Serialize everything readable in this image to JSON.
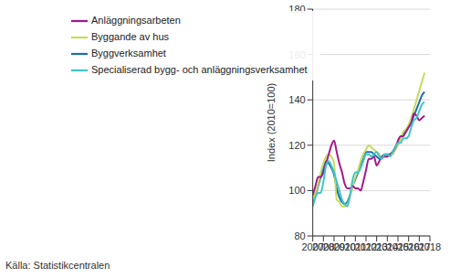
{
  "chart_data": {
    "type": "line",
    "y_label": "Index (2010=100)",
    "source": "Källa: Statistikcentralen",
    "x": [
      2007,
      2007.25,
      2007.5,
      2007.75,
      2008,
      2008.25,
      2008.5,
      2008.75,
      2009,
      2009.25,
      2009.5,
      2009.75,
      2010,
      2010.25,
      2010.5,
      2010.75,
      2011,
      2011.25,
      2011.5,
      2011.75,
      2012,
      2012.25,
      2012.5,
      2012.75,
      2013,
      2013.25,
      2013.5,
      2013.75,
      2014,
      2014.25,
      2014.5,
      2014.75,
      2015,
      2015.25,
      2015.5,
      2015.75,
      2016,
      2016.25,
      2016.5,
      2016.75,
      2017,
      2017.25,
      2017.5
    ],
    "series": [
      {
        "name": "Byggverksamhet",
        "color": "#1f6db3",
        "values": [
          94,
          98,
          102,
          106,
          110,
          113,
          112,
          110,
          107,
          101,
          97,
          95,
          94,
          95,
          98,
          102,
          105,
          108,
          111,
          114,
          117,
          117,
          117,
          116,
          115,
          114,
          115,
          116,
          116,
          116,
          117,
          119,
          121,
          123,
          125,
          126,
          128,
          130,
          133,
          136,
          139,
          142,
          143.5
        ]
      },
      {
        "name": "Byggande av hus",
        "color": "#c5dc5b",
        "values": [
          96,
          99,
          103,
          108,
          112,
          115,
          116,
          115,
          112,
          96,
          95,
          93,
          93,
          94,
          97,
          102,
          106,
          109,
          113,
          116,
          118,
          120,
          119,
          118,
          117,
          116,
          114,
          115,
          115,
          116,
          116,
          118,
          120,
          123,
          126,
          127,
          129,
          132,
          136,
          140,
          144,
          148,
          152
        ]
      },
      {
        "name": "Anläggningsarbeten",
        "color": "#a3198a",
        "values": [
          98,
          102,
          106,
          106,
          108,
          112,
          116,
          120,
          122,
          117,
          112,
          108,
          103,
          101,
          101,
          102,
          101,
          101,
          100,
          104,
          109,
          114,
          114,
          115,
          111,
          113,
          115,
          115,
          115,
          116,
          117,
          119,
          122,
          124,
          124,
          126,
          128,
          130,
          134,
          133,
          131,
          132,
          133
        ]
      },
      {
        "name": "Specialiserad bygg- och anläggningsverksamhet",
        "color": "#3fc6c8",
        "values": [
          93,
          97,
          99,
          99,
          104,
          111,
          113,
          111,
          108,
          104,
          100,
          96,
          94,
          93,
          98,
          105,
          108,
          108,
          110,
          113,
          116,
          116,
          115,
          116,
          117,
          115,
          114,
          116,
          116,
          115,
          117,
          119,
          121,
          121,
          123,
          123,
          124,
          128,
          131,
          132,
          135,
          138,
          139
        ]
      }
    ],
    "xlim": [
      2007,
      2018
    ],
    "xticks": [
      2007,
      2008,
      2009,
      2010,
      2011,
      2012,
      2013,
      2014,
      2015,
      2016,
      2017,
      2018
    ],
    "ylim": [
      80,
      180
    ],
    "yticks": [
      80,
      100,
      120,
      140,
      160,
      180
    ],
    "grid": true,
    "legend": "top-left"
  }
}
